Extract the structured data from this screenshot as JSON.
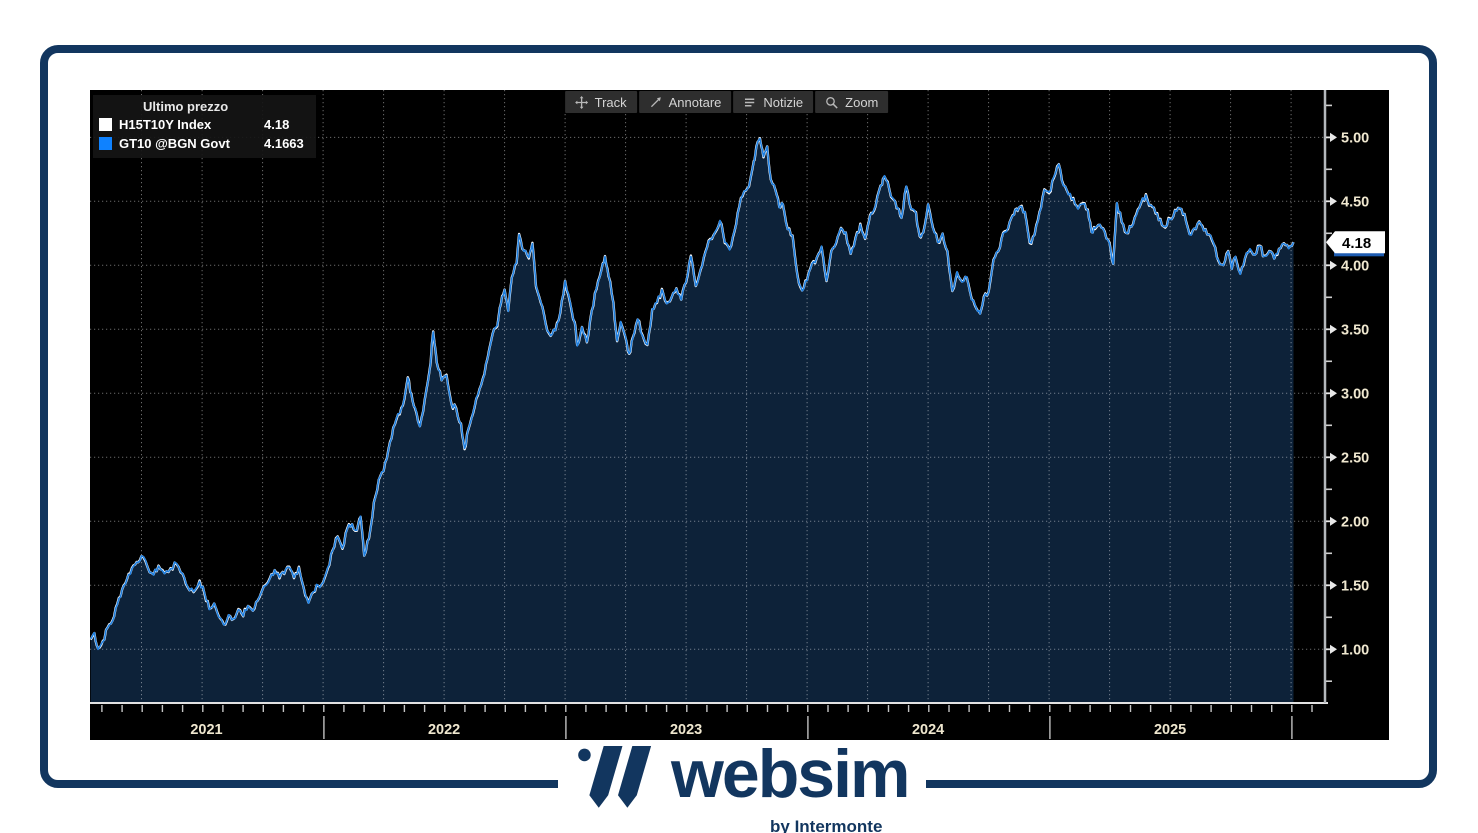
{
  "chart": {
    "legend": {
      "title": "Ultimo prezzo",
      "series": [
        {
          "label": "H15T10Y Index",
          "value": "4.18",
          "color": "#ffffff"
        },
        {
          "label": "GT10 @BGN Govt",
          "value": "4.1663",
          "color": "#0f82ff"
        }
      ]
    },
    "toolbar": [
      {
        "name": "track",
        "label": "Track"
      },
      {
        "name": "annotate",
        "label": "Annotare"
      },
      {
        "name": "news",
        "label": "Notizie"
      },
      {
        "name": "zoom",
        "label": "Zoom"
      }
    ]
  },
  "colors": {
    "brand_navy": "#12365f",
    "chart_bg": "#000000",
    "line_blue": "#1e7fe0",
    "line_white": "#ffffff",
    "area_fill": "#0d2239",
    "grid": "#ffffff",
    "axis_line": "#b4b8bc",
    "tick_label": "#efe7cf",
    "bubble_bg": "#ffffff",
    "bubble_text": "#000000",
    "bubble_under": "#1d5bb0"
  },
  "chart_data": {
    "type": "line",
    "title": "Ultimo prezzo",
    "x_unit": "decimal_year",
    "xlim": [
      2021.037,
      2026.14
    ],
    "ylim": [
      0.58,
      5.37
    ],
    "y_ticks": [
      1.0,
      1.5,
      2.0,
      2.5,
      3.0,
      3.5,
      4.0,
      4.5,
      5.0
    ],
    "y_minor_step": 0.25,
    "y_tick_format": "2dp",
    "x_year_labels": [
      2021,
      2022,
      2023,
      2024,
      2025
    ],
    "year_separators": [
      2022,
      2023,
      2024,
      2025,
      2026
    ],
    "grid": "dotted; vertical quarterly, horizontal every 0.50",
    "legend_position": "top-left",
    "last_price": 4.18,
    "last_price_label": "4.18",
    "series": [
      {
        "name": "H15T10Y Index",
        "color": "#ffffff",
        "last_value": 4.18
      },
      {
        "name": "GT10 @BGN Govt",
        "color": "#1e7fe0",
        "last_value": 4.1663
      }
    ],
    "points": [
      [
        2021.04,
        1.08
      ],
      [
        2021.055,
        1.13
      ],
      [
        2021.07,
        1.0
      ],
      [
        2021.09,
        1.06
      ],
      [
        2021.11,
        1.17
      ],
      [
        2021.13,
        1.22
      ],
      [
        2021.15,
        1.35
      ],
      [
        2021.17,
        1.47
      ],
      [
        2021.19,
        1.55
      ],
      [
        2021.21,
        1.63
      ],
      [
        2021.23,
        1.68
      ],
      [
        2021.25,
        1.73
      ],
      [
        2021.275,
        1.64
      ],
      [
        2021.3,
        1.58
      ],
      [
        2021.32,
        1.65
      ],
      [
        2021.345,
        1.59
      ],
      [
        2021.37,
        1.63
      ],
      [
        2021.395,
        1.67
      ],
      [
        2021.42,
        1.59
      ],
      [
        2021.44,
        1.49
      ],
      [
        2021.465,
        1.45
      ],
      [
        2021.49,
        1.53
      ],
      [
        2021.51,
        1.44
      ],
      [
        2021.53,
        1.31
      ],
      [
        2021.55,
        1.36
      ],
      [
        2021.57,
        1.25
      ],
      [
        2021.59,
        1.19
      ],
      [
        2021.61,
        1.27
      ],
      [
        2021.63,
        1.24
      ],
      [
        2021.65,
        1.31
      ],
      [
        2021.67,
        1.26
      ],
      [
        2021.69,
        1.34
      ],
      [
        2021.71,
        1.3
      ],
      [
        2021.73,
        1.38
      ],
      [
        2021.755,
        1.49
      ],
      [
        2021.78,
        1.55
      ],
      [
        2021.8,
        1.62
      ],
      [
        2021.82,
        1.56
      ],
      [
        2021.84,
        1.59
      ],
      [
        2021.86,
        1.64
      ],
      [
        2021.88,
        1.56
      ],
      [
        2021.9,
        1.64
      ],
      [
        2021.92,
        1.48
      ],
      [
        2021.94,
        1.36
      ],
      [
        2021.96,
        1.45
      ],
      [
        2021.98,
        1.5
      ],
      [
        2022.0,
        1.52
      ],
      [
        2022.02,
        1.64
      ],
      [
        2022.04,
        1.77
      ],
      [
        2022.06,
        1.88
      ],
      [
        2022.08,
        1.79
      ],
      [
        2022.1,
        1.94
      ],
      [
        2022.12,
        1.98
      ],
      [
        2022.14,
        1.93
      ],
      [
        2022.155,
        2.04
      ],
      [
        2022.17,
        1.73
      ],
      [
        2022.19,
        1.87
      ],
      [
        2022.21,
        2.15
      ],
      [
        2022.23,
        2.33
      ],
      [
        2022.25,
        2.39
      ],
      [
        2022.27,
        2.56
      ],
      [
        2022.29,
        2.73
      ],
      [
        2022.31,
        2.84
      ],
      [
        2022.33,
        2.91
      ],
      [
        2022.35,
        3.12
      ],
      [
        2022.365,
        2.99
      ],
      [
        2022.38,
        2.89
      ],
      [
        2022.4,
        2.74
      ],
      [
        2022.42,
        2.95
      ],
      [
        2022.44,
        3.17
      ],
      [
        2022.455,
        3.48
      ],
      [
        2022.47,
        3.24
      ],
      [
        2022.49,
        3.1
      ],
      [
        2022.51,
        3.14
      ],
      [
        2022.53,
        2.92
      ],
      [
        2022.55,
        2.88
      ],
      [
        2022.57,
        2.76
      ],
      [
        2022.585,
        2.57
      ],
      [
        2022.6,
        2.72
      ],
      [
        2022.62,
        2.85
      ],
      [
        2022.64,
        2.99
      ],
      [
        2022.66,
        3.11
      ],
      [
        2022.68,
        3.27
      ],
      [
        2022.7,
        3.46
      ],
      [
        2022.72,
        3.53
      ],
      [
        2022.735,
        3.7
      ],
      [
        2022.75,
        3.81
      ],
      [
        2022.765,
        3.64
      ],
      [
        2022.78,
        3.9
      ],
      [
        2022.8,
        4.02
      ],
      [
        2022.81,
        4.24
      ],
      [
        2022.83,
        4.11
      ],
      [
        2022.85,
        4.06
      ],
      [
        2022.865,
        4.17
      ],
      [
        2022.88,
        3.84
      ],
      [
        2022.9,
        3.71
      ],
      [
        2022.92,
        3.54
      ],
      [
        2022.94,
        3.45
      ],
      [
        2022.96,
        3.49
      ],
      [
        2022.98,
        3.63
      ],
      [
        2023.0,
        3.88
      ],
      [
        2023.02,
        3.72
      ],
      [
        2023.04,
        3.55
      ],
      [
        2023.05,
        3.37
      ],
      [
        2023.07,
        3.52
      ],
      [
        2023.09,
        3.4
      ],
      [
        2023.11,
        3.64
      ],
      [
        2023.13,
        3.82
      ],
      [
        2023.15,
        3.96
      ],
      [
        2023.165,
        4.07
      ],
      [
        2023.18,
        3.92
      ],
      [
        2023.2,
        3.7
      ],
      [
        2023.215,
        3.41
      ],
      [
        2023.23,
        3.56
      ],
      [
        2023.25,
        3.44
      ],
      [
        2023.265,
        3.31
      ],
      [
        2023.28,
        3.43
      ],
      [
        2023.3,
        3.58
      ],
      [
        2023.32,
        3.45
      ],
      [
        2023.34,
        3.38
      ],
      [
        2023.36,
        3.66
      ],
      [
        2023.38,
        3.71
      ],
      [
        2023.4,
        3.81
      ],
      [
        2023.42,
        3.7
      ],
      [
        2023.44,
        3.75
      ],
      [
        2023.46,
        3.82
      ],
      [
        2023.48,
        3.73
      ],
      [
        2023.5,
        3.87
      ],
      [
        2023.52,
        4.07
      ],
      [
        2023.54,
        3.84
      ],
      [
        2023.56,
        3.97
      ],
      [
        2023.58,
        4.1
      ],
      [
        2023.6,
        4.2
      ],
      [
        2023.62,
        4.26
      ],
      [
        2023.64,
        4.35
      ],
      [
        2023.66,
        4.18
      ],
      [
        2023.68,
        4.12
      ],
      [
        2023.7,
        4.27
      ],
      [
        2023.72,
        4.46
      ],
      [
        2023.74,
        4.58
      ],
      [
        2023.76,
        4.62
      ],
      [
        2023.78,
        4.81
      ],
      [
        2023.79,
        4.92
      ],
      [
        2023.805,
        4.99
      ],
      [
        2023.82,
        4.85
      ],
      [
        2023.835,
        4.93
      ],
      [
        2023.85,
        4.67
      ],
      [
        2023.87,
        4.58
      ],
      [
        2023.885,
        4.45
      ],
      [
        2023.9,
        4.48
      ],
      [
        2023.92,
        4.28
      ],
      [
        2023.94,
        4.23
      ],
      [
        2023.96,
        3.92
      ],
      [
        2023.98,
        3.8
      ],
      [
        2024.0,
        3.88
      ],
      [
        2024.02,
        4.01
      ],
      [
        2024.04,
        4.06
      ],
      [
        2024.06,
        4.15
      ],
      [
        2024.08,
        3.88
      ],
      [
        2024.1,
        4.11
      ],
      [
        2024.12,
        4.18
      ],
      [
        2024.14,
        4.29
      ],
      [
        2024.16,
        4.26
      ],
      [
        2024.18,
        4.09
      ],
      [
        2024.2,
        4.21
      ],
      [
        2024.22,
        4.32
      ],
      [
        2024.24,
        4.21
      ],
      [
        2024.255,
        4.34
      ],
      [
        2024.27,
        4.41
      ],
      [
        2024.29,
        4.53
      ],
      [
        2024.31,
        4.63
      ],
      [
        2024.32,
        4.7
      ],
      [
        2024.34,
        4.59
      ],
      [
        2024.36,
        4.51
      ],
      [
        2024.375,
        4.45
      ],
      [
        2024.39,
        4.37
      ],
      [
        2024.41,
        4.62
      ],
      [
        2024.43,
        4.44
      ],
      [
        2024.45,
        4.41
      ],
      [
        2024.465,
        4.23
      ],
      [
        2024.48,
        4.26
      ],
      [
        2024.5,
        4.48
      ],
      [
        2024.52,
        4.29
      ],
      [
        2024.54,
        4.18
      ],
      [
        2024.56,
        4.25
      ],
      [
        2024.58,
        4.11
      ],
      [
        2024.6,
        3.8
      ],
      [
        2024.62,
        3.95
      ],
      [
        2024.64,
        3.87
      ],
      [
        2024.66,
        3.91
      ],
      [
        2024.68,
        3.73
      ],
      [
        2024.7,
        3.66
      ],
      [
        2024.715,
        3.62
      ],
      [
        2024.73,
        3.75
      ],
      [
        2024.75,
        3.79
      ],
      [
        2024.77,
        4.04
      ],
      [
        2024.79,
        4.11
      ],
      [
        2024.81,
        4.25
      ],
      [
        2024.83,
        4.29
      ],
      [
        2024.85,
        4.39
      ],
      [
        2024.865,
        4.44
      ],
      [
        2024.88,
        4.46
      ],
      [
        2024.9,
        4.42
      ],
      [
        2024.92,
        4.18
      ],
      [
        2024.94,
        4.24
      ],
      [
        2024.96,
        4.41
      ],
      [
        2024.98,
        4.59
      ],
      [
        2025.0,
        4.57
      ],
      [
        2025.02,
        4.69
      ],
      [
        2025.04,
        4.79
      ],
      [
        2025.06,
        4.62
      ],
      [
        2025.08,
        4.55
      ],
      [
        2025.1,
        4.52
      ],
      [
        2025.12,
        4.44
      ],
      [
        2025.14,
        4.48
      ],
      [
        2025.16,
        4.43
      ],
      [
        2025.175,
        4.26
      ],
      [
        2025.19,
        4.29
      ],
      [
        2025.21,
        4.32
      ],
      [
        2025.23,
        4.26
      ],
      [
        2025.25,
        4.17
      ],
      [
        2025.265,
        4.01
      ],
      [
        2025.28,
        4.49
      ],
      [
        2025.3,
        4.34
      ],
      [
        2025.32,
        4.25
      ],
      [
        2025.34,
        4.3
      ],
      [
        2025.36,
        4.39
      ],
      [
        2025.38,
        4.49
      ],
      [
        2025.4,
        4.55
      ],
      [
        2025.42,
        4.47
      ],
      [
        2025.44,
        4.41
      ],
      [
        2025.46,
        4.36
      ],
      [
        2025.48,
        4.3
      ],
      [
        2025.5,
        4.36
      ],
      [
        2025.52,
        4.43
      ],
      [
        2025.54,
        4.45
      ],
      [
        2025.56,
        4.4
      ],
      [
        2025.58,
        4.24
      ],
      [
        2025.6,
        4.29
      ],
      [
        2025.62,
        4.34
      ],
      [
        2025.64,
        4.27
      ],
      [
        2025.66,
        4.24
      ],
      [
        2025.68,
        4.17
      ],
      [
        2025.7,
        4.04
      ],
      [
        2025.72,
        4.0
      ],
      [
        2025.74,
        4.11
      ],
      [
        2025.755,
        3.97
      ],
      [
        2025.77,
        4.07
      ],
      [
        2025.79,
        3.93
      ],
      [
        2025.81,
        4.06
      ],
      [
        2025.83,
        4.13
      ],
      [
        2025.85,
        4.08
      ],
      [
        2025.87,
        4.15
      ],
      [
        2025.89,
        4.07
      ],
      [
        2025.91,
        4.11
      ],
      [
        2025.93,
        4.05
      ],
      [
        2025.95,
        4.13
      ],
      [
        2025.97,
        4.17
      ],
      [
        2025.99,
        4.13
      ],
      [
        2026.01,
        4.18
      ]
    ]
  },
  "footer": {
    "brand": "websim",
    "byline": "by Intermonte"
  }
}
